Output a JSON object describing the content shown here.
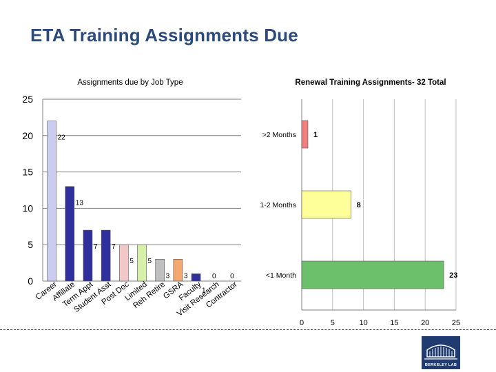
{
  "slide": {
    "title": "ETA Training Assignments Due",
    "logo_text": "BERKELEY LAB"
  },
  "chart_data": [
    {
      "type": "bar",
      "title": "Assignments due by Job Type",
      "categories": [
        "Career",
        "Affiliate",
        "Term Appt",
        "Student Asst",
        "Post Doc",
        "Limited",
        "Reh Retire",
        "GSRA",
        "Faculty",
        "Visit Research",
        "Contractor"
      ],
      "values": [
        22,
        13,
        7,
        7,
        5,
        5,
        3,
        3,
        1,
        0,
        0
      ],
      "colors": [
        "#ccccf0",
        "#2f2f9e",
        "#2f2f9e",
        "#2f2f9e",
        "#f2c7c7",
        "#d6f0a8",
        "#bfbfbf",
        "#f4a76f",
        "#2f2f9e",
        "#2f2f9e",
        "#2f2f9e"
      ],
      "ylim": [
        0,
        25
      ],
      "yticks": [
        0,
        5,
        10,
        15,
        20,
        25
      ],
      "grid": true
    },
    {
      "type": "bar",
      "orientation": "horizontal",
      "title": "Renewal Training Assignments- 32 Total",
      "categories": [
        ">2 Months",
        "1-2 Months",
        "<1 Month"
      ],
      "values": [
        1,
        8,
        23
      ],
      "colors": [
        "#f08080",
        "#ffff99",
        "#6cc06c"
      ],
      "xlim": [
        0,
        25
      ],
      "xticks": [
        0,
        5,
        10,
        15,
        20,
        25
      ],
      "grid": true
    }
  ]
}
